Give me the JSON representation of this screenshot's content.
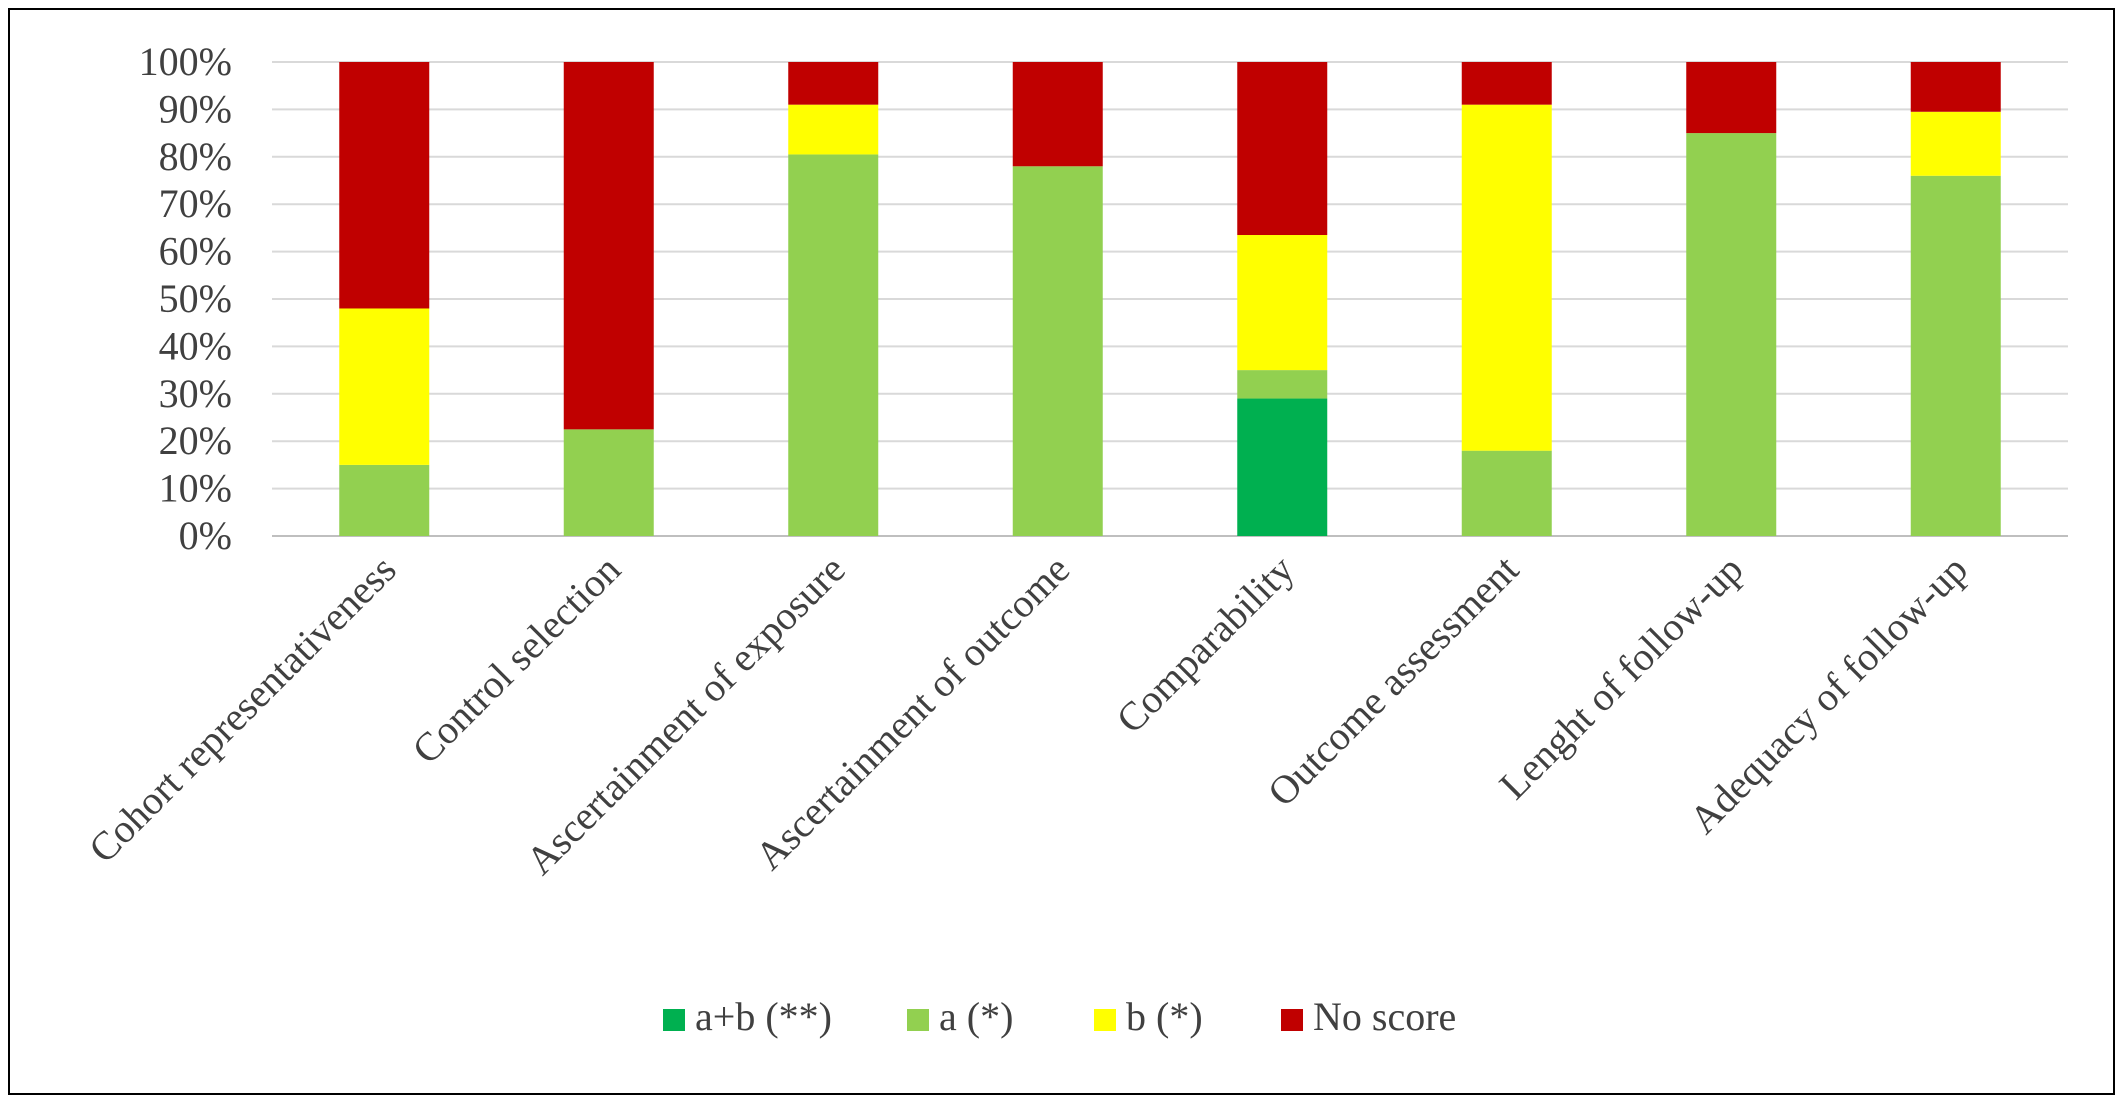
{
  "chart_data": {
    "type": "bar",
    "stacked": true,
    "categories": [
      "Cohort representativeness",
      "Control selection",
      "Ascertainment of exposure",
      "Ascertainment of outcome",
      "Comparability",
      "Outcome assessment",
      "Lenght of follow-up",
      "Adequacy of follow-up"
    ],
    "series": [
      {
        "name": "a+b (**)",
        "color": "#00B050",
        "values": [
          0,
          0,
          0,
          0,
          29,
          0,
          0,
          0
        ]
      },
      {
        "name": "a (*)",
        "color": "#92D050",
        "values": [
          15,
          22.5,
          80.5,
          78,
          6,
          18,
          85,
          76
        ]
      },
      {
        "name": "b (*)",
        "color": "#FFFF00",
        "values": [
          33,
          0,
          10.5,
          0,
          28.5,
          73,
          0,
          13.5
        ]
      },
      {
        "name": "No score",
        "color": "#C00000",
        "values": [
          52,
          77.5,
          9,
          22,
          36.5,
          9,
          15,
          10.5
        ]
      }
    ],
    "yticks": [
      "0%",
      "10%",
      "20%",
      "30%",
      "40%",
      "50%",
      "60%",
      "70%",
      "80%",
      "90%",
      "100%"
    ],
    "ylim": [
      0,
      100
    ],
    "grid": true,
    "legend_position": "bottom",
    "title": "",
    "xlabel": "",
    "ylabel": ""
  }
}
